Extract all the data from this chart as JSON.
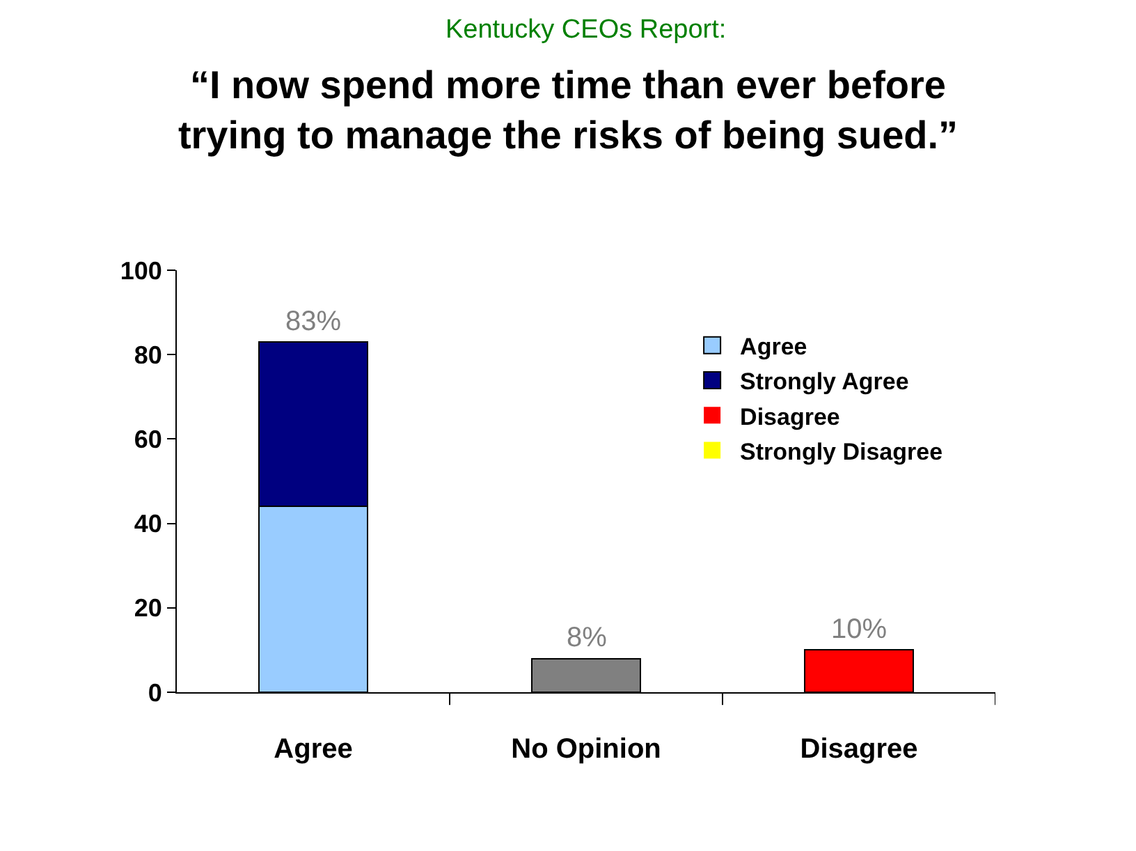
{
  "chart_data": {
    "type": "bar",
    "subtitle": "Kentucky CEOs Report:",
    "title": "“I now spend more time than ever before trying to manage the risks of being sued.”",
    "categories": [
      "Agree",
      "No Opinion",
      "Disagree"
    ],
    "stacked": true,
    "series": [
      {
        "name": "Agree",
        "color": "#99ccff",
        "values": [
          44,
          null,
          null
        ]
      },
      {
        "name": "Strongly Agree",
        "color": "#000080",
        "values": [
          39,
          null,
          null
        ]
      },
      {
        "color": "#808080",
        "values": [
          null,
          8,
          null
        ]
      },
      {
        "name": "Disagree",
        "color": "#ff0000",
        "values": [
          null,
          null,
          10
        ]
      },
      {
        "name": "Strongly Disagree",
        "color": "#ffff00",
        "values": [
          null,
          null,
          0
        ]
      }
    ],
    "totals": [
      "83%",
      "8%",
      "10%"
    ],
    "ylim": [
      0,
      100
    ],
    "yticks": [
      0,
      20,
      40,
      60,
      80,
      100
    ],
    "grid": false,
    "legend": "top right"
  }
}
